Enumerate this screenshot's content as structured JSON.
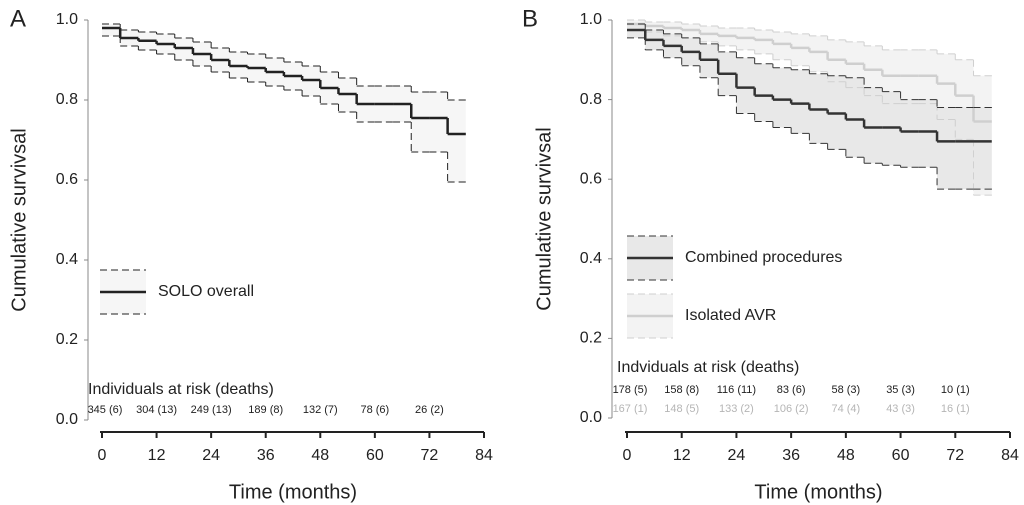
{
  "chart_data": [
    {
      "type": "line",
      "step": true,
      "panel_label": "A",
      "xlabel": "Time (months)",
      "ylabel": "Cumulative survivsal",
      "xlim": [
        0,
        84
      ],
      "xticks": [
        0,
        12,
        24,
        36,
        48,
        60,
        72,
        84
      ],
      "ylim": [
        0,
        1
      ],
      "yticks": [
        {
          "value": 0,
          "label": "0.0"
        },
        0.2,
        0.4,
        0.6,
        0.8,
        {
          "value": 1,
          "label": "1.0"
        }
      ],
      "legend": "left",
      "x": [
        0,
        4,
        8,
        12,
        16,
        20,
        24,
        28,
        32,
        36,
        40,
        44,
        48,
        52,
        56,
        60,
        64,
        68,
        72,
        76,
        80
      ],
      "series": [
        {
          "name": "SOLO overall",
          "color": "#222222",
          "band_color": "#f6f6f6",
          "values": [
            0.98,
            0.955,
            0.948,
            0.94,
            0.93,
            0.915,
            0.9,
            0.885,
            0.88,
            0.87,
            0.86,
            0.85,
            0.83,
            0.815,
            0.79,
            0.79,
            0.79,
            0.755,
            0.755,
            0.715,
            0.715
          ],
          "upper": [
            0.99,
            0.975,
            0.97,
            0.965,
            0.955,
            0.945,
            0.93,
            0.92,
            0.915,
            0.905,
            0.895,
            0.885,
            0.87,
            0.855,
            0.835,
            0.835,
            0.835,
            0.82,
            0.82,
            0.8,
            0.8
          ],
          "lower": [
            0.96,
            0.935,
            0.925,
            0.915,
            0.9,
            0.885,
            0.87,
            0.855,
            0.845,
            0.835,
            0.825,
            0.81,
            0.79,
            0.77,
            0.745,
            0.745,
            0.745,
            0.67,
            0.67,
            0.595,
            0.595
          ]
        }
      ],
      "risk_table": {
        "title": "Individuals at risk (deaths)",
        "x": [
          0,
          12,
          24,
          36,
          48,
          60,
          72
        ],
        "rows": [
          {
            "color": "#222222",
            "labels": [
              "345 (6)",
              "304 (13)",
              "249 (13)",
              "189 (8)",
              "132 (7)",
              "78 (6)",
              "26 (2)"
            ]
          }
        ]
      }
    },
    {
      "type": "line",
      "step": true,
      "panel_label": "B",
      "xlabel": "Time (months)",
      "ylabel": "Cumulative survivsal",
      "xlim": [
        0,
        84
      ],
      "xticks": [
        0,
        12,
        24,
        36,
        48,
        60,
        72,
        84
      ],
      "ylim": [
        0,
        1
      ],
      "yticks": [
        {
          "value": 0,
          "label": "0.0"
        },
        0.2,
        0.4,
        0.6,
        0.8,
        {
          "value": 1,
          "label": "1.0"
        }
      ],
      "legend": "left",
      "x": [
        0,
        4,
        8,
        12,
        16,
        20,
        24,
        28,
        32,
        36,
        40,
        44,
        48,
        52,
        56,
        60,
        64,
        68,
        72,
        76,
        80
      ],
      "series": [
        {
          "name": "Isolated AVR",
          "color": "#cfcfcf",
          "band_color": "#f3f3f3",
          "values": [
            0.99,
            0.985,
            0.98,
            0.975,
            0.965,
            0.96,
            0.955,
            0.95,
            0.94,
            0.93,
            0.92,
            0.9,
            0.89,
            0.875,
            0.86,
            0.86,
            0.86,
            0.84,
            0.81,
            0.745,
            0.745
          ],
          "upper": [
            1.0,
            0.995,
            0.995,
            0.99,
            0.985,
            0.98,
            0.98,
            0.975,
            0.97,
            0.965,
            0.96,
            0.95,
            0.945,
            0.935,
            0.925,
            0.925,
            0.925,
            0.915,
            0.9,
            0.86,
            0.86
          ],
          "lower": [
            0.975,
            0.97,
            0.96,
            0.955,
            0.945,
            0.935,
            0.925,
            0.915,
            0.9,
            0.885,
            0.87,
            0.845,
            0.83,
            0.81,
            0.79,
            0.79,
            0.79,
            0.75,
            0.7,
            0.56,
            0.56
          ]
        },
        {
          "name": "Combined procedures",
          "color": "#333333",
          "band_color": "#e8e8e8",
          "values": [
            0.975,
            0.95,
            0.935,
            0.92,
            0.9,
            0.865,
            0.83,
            0.81,
            0.8,
            0.79,
            0.775,
            0.765,
            0.75,
            0.73,
            0.73,
            0.72,
            0.72,
            0.695,
            0.695,
            0.695,
            0.695
          ],
          "upper": [
            0.99,
            0.975,
            0.965,
            0.955,
            0.94,
            0.92,
            0.905,
            0.89,
            0.88,
            0.875,
            0.865,
            0.86,
            0.855,
            0.83,
            0.82,
            0.8,
            0.8,
            0.78,
            0.78,
            0.78,
            0.78
          ],
          "lower": [
            0.955,
            0.925,
            0.905,
            0.885,
            0.855,
            0.81,
            0.765,
            0.745,
            0.73,
            0.715,
            0.69,
            0.675,
            0.655,
            0.64,
            0.635,
            0.63,
            0.63,
            0.575,
            0.575,
            0.575,
            0.575
          ]
        }
      ],
      "risk_table": {
        "title": "Indviduals at risk (deaths)",
        "x": [
          0,
          12,
          24,
          36,
          48,
          60,
          72
        ],
        "rows": [
          {
            "color": "#222222",
            "labels": [
              "178 (5)",
              "158 (8)",
              "116 (11)",
              "83 (6)",
              "58 (3)",
              "35 (3)",
              "10 (1)"
            ]
          },
          {
            "color": "#b5b5b5",
            "labels": [
              "167 (1)",
              "148 (5)",
              "133 (2)",
              "106 (2)",
              "74 (4)",
              "43 (3)",
              "16 (1)"
            ]
          }
        ]
      }
    }
  ]
}
